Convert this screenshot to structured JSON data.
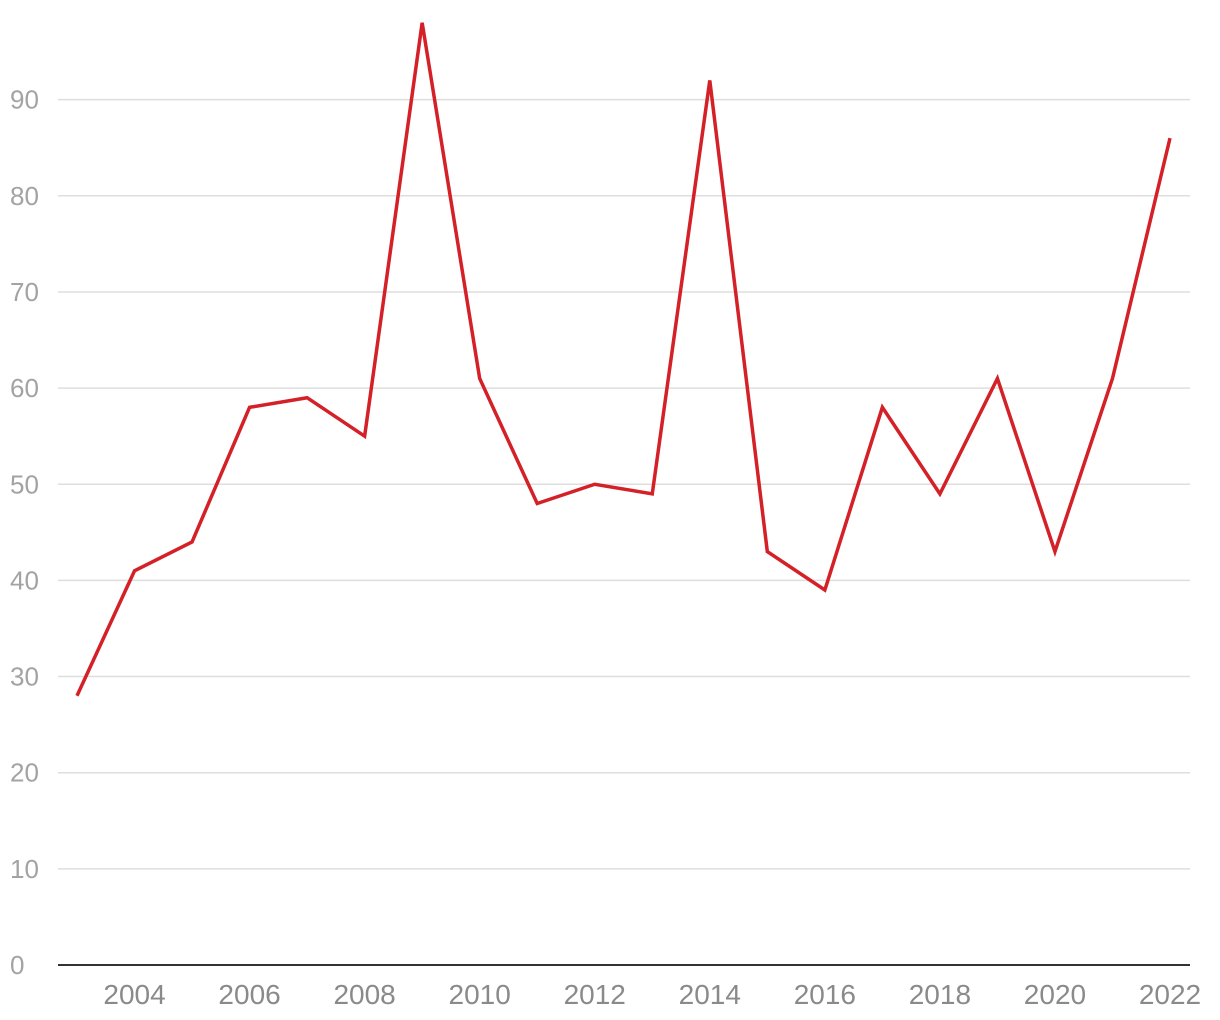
{
  "chart_data": {
    "type": "line",
    "title": "",
    "xlabel": "",
    "ylabel": "",
    "x": [
      2003,
      2004,
      2005,
      2006,
      2007,
      2008,
      2009,
      2010,
      2011,
      2012,
      2013,
      2014,
      2015,
      2016,
      2017,
      2018,
      2019,
      2020,
      2021,
      2022
    ],
    "series": [
      {
        "values": [
          28,
          41,
          44,
          58,
          59,
          55,
          98,
          61,
          48,
          50,
          49,
          92,
          43,
          39,
          58,
          49,
          61,
          43,
          61,
          86
        ],
        "color": "#d42027"
      }
    ],
    "xlim": [
      2003,
      2022
    ],
    "ylim": [
      0,
      98
    ],
    "y_ticks": [
      "0",
      "10",
      "20",
      "30",
      "40",
      "50",
      "60",
      "70",
      "80",
      "90"
    ],
    "x_ticks": [
      "2004",
      "2006",
      "2008",
      "2010",
      "2012",
      "2014",
      "2016",
      "2018",
      "2020",
      "2022"
    ],
    "grid": true,
    "legend": "none"
  }
}
